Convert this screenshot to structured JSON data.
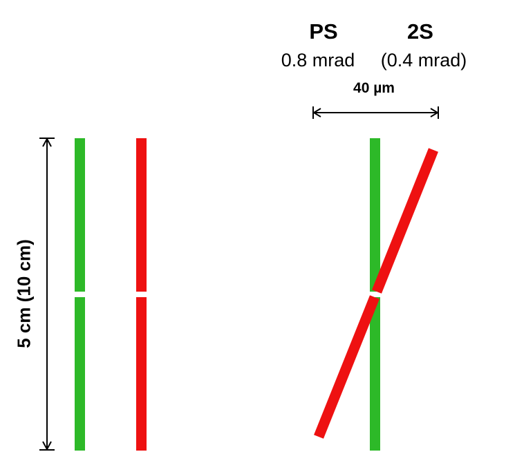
{
  "labels": {
    "ps": "PS",
    "two_s": "2S",
    "ps_angle": "0.8 mrad",
    "two_s_angle": "(0.4 mrad)",
    "spacing": "40 µm",
    "length": "5 cm (10 cm)"
  },
  "colors": {
    "green": "#2db928",
    "red": "#ee1111",
    "arrow": "#000000"
  }
}
